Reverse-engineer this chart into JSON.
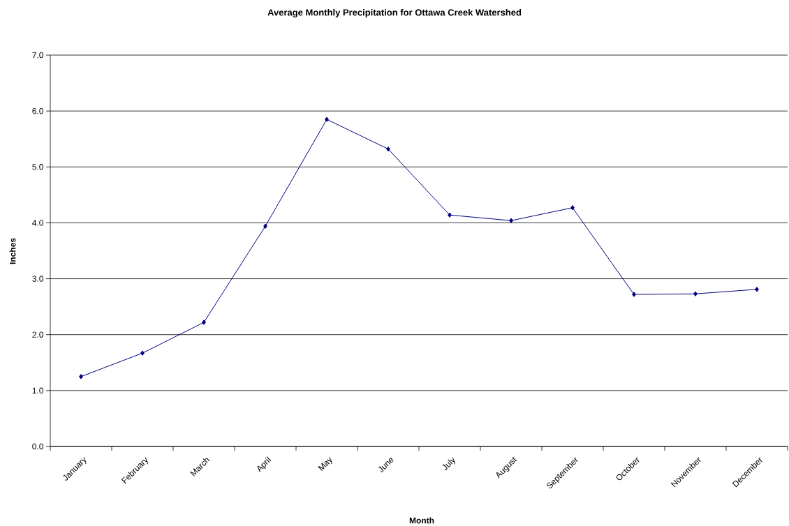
{
  "chart_data": {
    "type": "line",
    "title": "Average Monthly Precipitation for Ottawa Creek Watershed",
    "xlabel": "Month",
    "ylabel": "Inches",
    "categories": [
      "January",
      "February",
      "March",
      "April",
      "May",
      "June",
      "July",
      "August",
      "September",
      "October",
      "November",
      "December"
    ],
    "series": [
      {
        "color": "#000080",
        "values": [
          1.25,
          1.67,
          2.22,
          3.94,
          5.85,
          5.32,
          4.14,
          4.04,
          4.27,
          2.72,
          2.73,
          2.81
        ]
      }
    ],
    "ylim": [
      0,
      7
    ],
    "yticks": [
      {
        "value": 0,
        "label": "0.0"
      },
      {
        "value": 1,
        "label": "1.0"
      },
      {
        "value": 2,
        "label": "2.0"
      },
      {
        "value": 3,
        "label": "3.0"
      },
      {
        "value": 4,
        "label": "4.0"
      },
      {
        "value": 5,
        "label": "5.0"
      },
      {
        "value": 6,
        "label": "6.0"
      },
      {
        "value": 7,
        "label": "7.0"
      }
    ],
    "grid": "y",
    "marker": "diamond",
    "line_style": "solid"
  }
}
